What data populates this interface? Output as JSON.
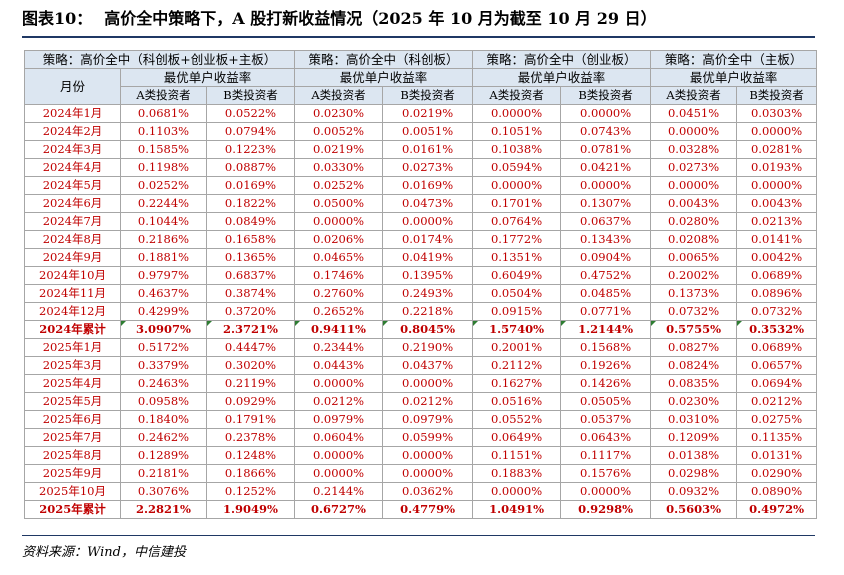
{
  "title": {
    "label": "图表10：",
    "text": "高价全中策略下，A 股打新收益情况（2025 年 10 月为截至 10 月 29 日）"
  },
  "table": {
    "strategies": [
      "策略：高价全中（科创板+创业板+主板）",
      "策略：高价全中（科创板）",
      "策略：高价全中（创业板）",
      "策略：高价全中（主板）"
    ],
    "month_header": "月份",
    "group_header": "最优单户收益率",
    "investor_a": "A类投资者",
    "investor_b": "B类投资者",
    "rows": [
      {
        "month": "2024年1月",
        "v": [
          "0.0681%",
          "0.0522%",
          "0.0230%",
          "0.0219%",
          "0.0000%",
          "0.0000%",
          "0.0451%",
          "0.0303%"
        ]
      },
      {
        "month": "2024年2月",
        "v": [
          "0.1103%",
          "0.0794%",
          "0.0052%",
          "0.0051%",
          "0.1051%",
          "0.0743%",
          "0.0000%",
          "0.0000%"
        ]
      },
      {
        "month": "2024年3月",
        "v": [
          "0.1585%",
          "0.1223%",
          "0.0219%",
          "0.0161%",
          "0.1038%",
          "0.0781%",
          "0.0328%",
          "0.0281%"
        ]
      },
      {
        "month": "2024年4月",
        "v": [
          "0.1198%",
          "0.0887%",
          "0.0330%",
          "0.0273%",
          "0.0594%",
          "0.0421%",
          "0.0273%",
          "0.0193%"
        ]
      },
      {
        "month": "2024年5月",
        "v": [
          "0.0252%",
          "0.0169%",
          "0.0252%",
          "0.0169%",
          "0.0000%",
          "0.0000%",
          "0.0000%",
          "0.0000%"
        ]
      },
      {
        "month": "2024年6月",
        "v": [
          "0.2244%",
          "0.1822%",
          "0.0500%",
          "0.0473%",
          "0.1701%",
          "0.1307%",
          "0.0043%",
          "0.0043%"
        ]
      },
      {
        "month": "2024年7月",
        "v": [
          "0.1044%",
          "0.0849%",
          "0.0000%",
          "0.0000%",
          "0.0764%",
          "0.0637%",
          "0.0280%",
          "0.0213%"
        ]
      },
      {
        "month": "2024年8月",
        "v": [
          "0.2186%",
          "0.1658%",
          "0.0206%",
          "0.0174%",
          "0.1772%",
          "0.1343%",
          "0.0208%",
          "0.0141%"
        ]
      },
      {
        "month": "2024年9月",
        "v": [
          "0.1881%",
          "0.1365%",
          "0.0465%",
          "0.0419%",
          "0.1351%",
          "0.0904%",
          "0.0065%",
          "0.0042%"
        ]
      },
      {
        "month": "2024年10月",
        "v": [
          "0.9797%",
          "0.6837%",
          "0.1746%",
          "0.1395%",
          "0.6049%",
          "0.4752%",
          "0.2002%",
          "0.0689%"
        ]
      },
      {
        "month": "2024年11月",
        "v": [
          "0.4637%",
          "0.3874%",
          "0.2760%",
          "0.2493%",
          "0.0504%",
          "0.0485%",
          "0.1373%",
          "0.0896%"
        ]
      },
      {
        "month": "2024年12月",
        "v": [
          "0.4299%",
          "0.3720%",
          "0.2652%",
          "0.2218%",
          "0.0915%",
          "0.0771%",
          "0.0732%",
          "0.0732%"
        ]
      },
      {
        "month": "2024年累计",
        "total": true,
        "v": [
          "3.0907%",
          "2.3721%",
          "0.9411%",
          "0.8045%",
          "1.5740%",
          "1.2144%",
          "0.5755%",
          "0.3532%"
        ]
      },
      {
        "month": "2025年1月",
        "v": [
          "0.5172%",
          "0.4447%",
          "0.2344%",
          "0.2190%",
          "0.2001%",
          "0.1568%",
          "0.0827%",
          "0.0689%"
        ]
      },
      {
        "month": "2025年3月",
        "v": [
          "0.3379%",
          "0.3020%",
          "0.0443%",
          "0.0437%",
          "0.2112%",
          "0.1926%",
          "0.0824%",
          "0.0657%"
        ]
      },
      {
        "month": "2025年4月",
        "v": [
          "0.2463%",
          "0.2119%",
          "0.0000%",
          "0.0000%",
          "0.1627%",
          "0.1426%",
          "0.0835%",
          "0.0694%"
        ]
      },
      {
        "month": "2025年5月",
        "v": [
          "0.0958%",
          "0.0929%",
          "0.0212%",
          "0.0212%",
          "0.0516%",
          "0.0505%",
          "0.0230%",
          "0.0212%"
        ]
      },
      {
        "month": "2025年6月",
        "v": [
          "0.1840%",
          "0.1791%",
          "0.0979%",
          "0.0979%",
          "0.0552%",
          "0.0537%",
          "0.0310%",
          "0.0275%"
        ]
      },
      {
        "month": "2025年7月",
        "v": [
          "0.2462%",
          "0.2378%",
          "0.0604%",
          "0.0599%",
          "0.0649%",
          "0.0643%",
          "0.1209%",
          "0.1135%"
        ]
      },
      {
        "month": "2025年8月",
        "v": [
          "0.1289%",
          "0.1248%",
          "0.0000%",
          "0.0000%",
          "0.1151%",
          "0.1117%",
          "0.0138%",
          "0.0131%"
        ]
      },
      {
        "month": "2025年9月",
        "v": [
          "0.2181%",
          "0.1866%",
          "0.0000%",
          "0.0000%",
          "0.1883%",
          "0.1576%",
          "0.0298%",
          "0.0290%"
        ]
      },
      {
        "month": "2025年10月",
        "v": [
          "0.3076%",
          "0.1252%",
          "0.2144%",
          "0.0362%",
          "0.0000%",
          "0.0000%",
          "0.0932%",
          "0.0890%"
        ]
      },
      {
        "month": "2025年累计",
        "total": true,
        "last": true,
        "v": [
          "2.2821%",
          "1.9049%",
          "0.6727%",
          "0.4779%",
          "1.0491%",
          "0.9298%",
          "0.5603%",
          "0.4972%"
        ]
      }
    ]
  },
  "source": "资料来源：Wind，中信建投"
}
